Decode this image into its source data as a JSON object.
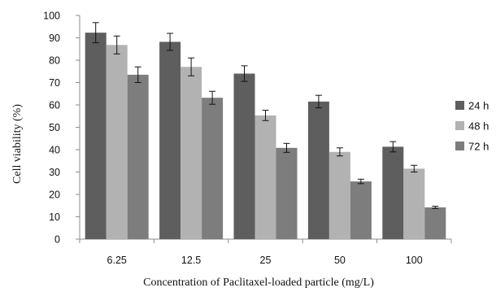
{
  "chart_data": {
    "type": "bar",
    "xlabel": "Concentration of Paclitaxel-loaded particle (mg/L)",
    "ylabel": "Cell viability (%)",
    "ylim": [
      0,
      100
    ],
    "yticks": [
      0,
      10,
      20,
      30,
      40,
      50,
      60,
      70,
      80,
      90,
      100
    ],
    "categories": [
      "6.25",
      "12.5",
      "25",
      "50",
      "100"
    ],
    "grid": false,
    "legend": "right",
    "series": [
      {
        "name": "24 h",
        "color": "#5e5e5e",
        "values": [
          92.3,
          88.2,
          74.0,
          61.5,
          41.3
        ],
        "errors": [
          4.5,
          3.8,
          3.5,
          2.8,
          2.3
        ]
      },
      {
        "name": "48 h",
        "color": "#b2b2b2",
        "values": [
          86.8,
          77.0,
          55.3,
          39.0,
          31.5
        ],
        "errors": [
          4.0,
          4.0,
          2.3,
          1.8,
          1.5
        ]
      },
      {
        "name": "72 h",
        "color": "#7d7d7d",
        "values": [
          73.5,
          63.2,
          40.8,
          25.8,
          14.2
        ],
        "errors": [
          3.5,
          2.9,
          2.0,
          1.0,
          0.5
        ]
      }
    ]
  }
}
